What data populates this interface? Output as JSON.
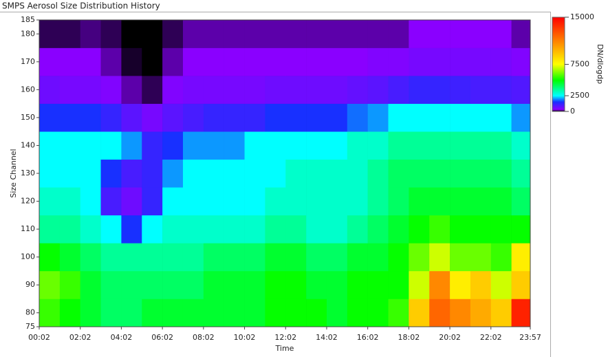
{
  "chart_data": {
    "type": "heatmap",
    "title": "SMPS Aerosol Size Distribution History",
    "x_label": "Time",
    "y_label": "Size Channel",
    "colorbar_label": "DN/dlogdp",
    "xlim": [
      2,
      1437
    ],
    "xticks": [
      {
        "value": 2,
        "label": "00:02"
      },
      {
        "value": 122,
        "label": "02:02"
      },
      {
        "value": 242,
        "label": "04:02"
      },
      {
        "value": 362,
        "label": "06:02"
      },
      {
        "value": 482,
        "label": "08:02"
      },
      {
        "value": 602,
        "label": "10:02"
      },
      {
        "value": 722,
        "label": "12:02"
      },
      {
        "value": 842,
        "label": "14:02"
      },
      {
        "value": 962,
        "label": "16:02"
      },
      {
        "value": 1082,
        "label": "18:02"
      },
      {
        "value": 1202,
        "label": "20:02"
      },
      {
        "value": 1322,
        "label": "22:02"
      },
      {
        "value": 1437,
        "label": "23:57"
      }
    ],
    "ylim": [
      75,
      185
    ],
    "yticks": [
      75,
      80,
      90,
      100,
      110,
      120,
      130,
      140,
      150,
      160,
      170,
      180,
      185
    ],
    "zlim": [
      0,
      15000
    ],
    "zticks": [
      0,
      2500,
      7500,
      15000
    ],
    "colors": [
      "#000000",
      "#8a00ff",
      "#1830ff",
      "#00ffff",
      "#00ff00",
      "#ffff00",
      "#ff8000",
      "#ff0000"
    ],
    "xbins": [
      2,
      62,
      122,
      182,
      242,
      302,
      362,
      422,
      482,
      542,
      602,
      662,
      722,
      782,
      842,
      902,
      962,
      1022,
      1082,
      1142,
      1202,
      1262,
      1322,
      1382,
      1437
    ],
    "ybins": [
      75,
      85,
      95,
      105,
      115,
      125,
      135,
      145,
      155,
      165,
      175,
      185
    ],
    "values": [
      [
        5500,
        5000,
        4500,
        4000,
        4000,
        4500,
        4500,
        4500,
        4500,
        4500,
        4500,
        5000,
        5000,
        5000,
        4500,
        5000,
        5000,
        5500,
        9000,
        12000,
        11000,
        10000,
        9000,
        14000
      ],
      [
        6000,
        5500,
        4500,
        4000,
        4000,
        4000,
        4000,
        4000,
        4500,
        4500,
        4500,
        5000,
        5000,
        4500,
        4500,
        5000,
        5000,
        5000,
        7000,
        11000,
        8000,
        9000,
        7000,
        9000
      ],
      [
        5000,
        4500,
        4000,
        3500,
        3500,
        3500,
        3500,
        3500,
        4000,
        4000,
        4000,
        4500,
        4500,
        4000,
        4000,
        4500,
        4500,
        5000,
        6000,
        7000,
        6000,
        6000,
        5500,
        8000
      ],
      [
        3500,
        3500,
        3000,
        2500,
        1500,
        2500,
        3000,
        3000,
        3000,
        3000,
        3000,
        3500,
        3500,
        3000,
        3000,
        3500,
        4000,
        4500,
        5000,
        5500,
        5000,
        5000,
        5000,
        5000
      ],
      [
        3000,
        3000,
        2500,
        1000,
        600,
        1200,
        2500,
        2500,
        2500,
        2500,
        2500,
        3000,
        3000,
        3000,
        3000,
        3000,
        3500,
        4000,
        4500,
        4500,
        4500,
        4500,
        4500,
        4000
      ],
      [
        2500,
        2500,
        2500,
        1500,
        1000,
        1200,
        2000,
        2500,
        2500,
        2500,
        2500,
        2500,
        3000,
        3000,
        3000,
        3000,
        3500,
        4000,
        4000,
        4000,
        4000,
        4000,
        4000,
        3500
      ],
      [
        2500,
        2500,
        2500,
        2500,
        2000,
        1200,
        1500,
        2000,
        2000,
        2000,
        2500,
        2500,
        2500,
        2500,
        2500,
        3000,
        3000,
        3500,
        3500,
        3500,
        3500,
        3500,
        3500,
        3000
      ],
      [
        1500,
        1500,
        1500,
        1200,
        800,
        500,
        800,
        1000,
        1200,
        1200,
        1200,
        1500,
        1500,
        1500,
        1500,
        1800,
        2000,
        2500,
        2500,
        2500,
        2500,
        2500,
        2500,
        2000
      ],
      [
        600,
        500,
        500,
        400,
        200,
        100,
        400,
        500,
        500,
        500,
        500,
        600,
        600,
        600,
        600,
        700,
        800,
        1000,
        1200,
        1200,
        1100,
        1000,
        1000,
        900
      ],
      [
        300,
        300,
        300,
        200,
        50,
        0,
        200,
        300,
        300,
        300,
        300,
        300,
        300,
        300,
        300,
        300,
        400,
        400,
        500,
        500,
        500,
        500,
        500,
        400
      ],
      [
        100,
        100,
        150,
        100,
        0,
        0,
        100,
        200,
        200,
        200,
        200,
        200,
        200,
        200,
        200,
        200,
        200,
        200,
        300,
        300,
        300,
        300,
        300,
        200
      ]
    ]
  }
}
